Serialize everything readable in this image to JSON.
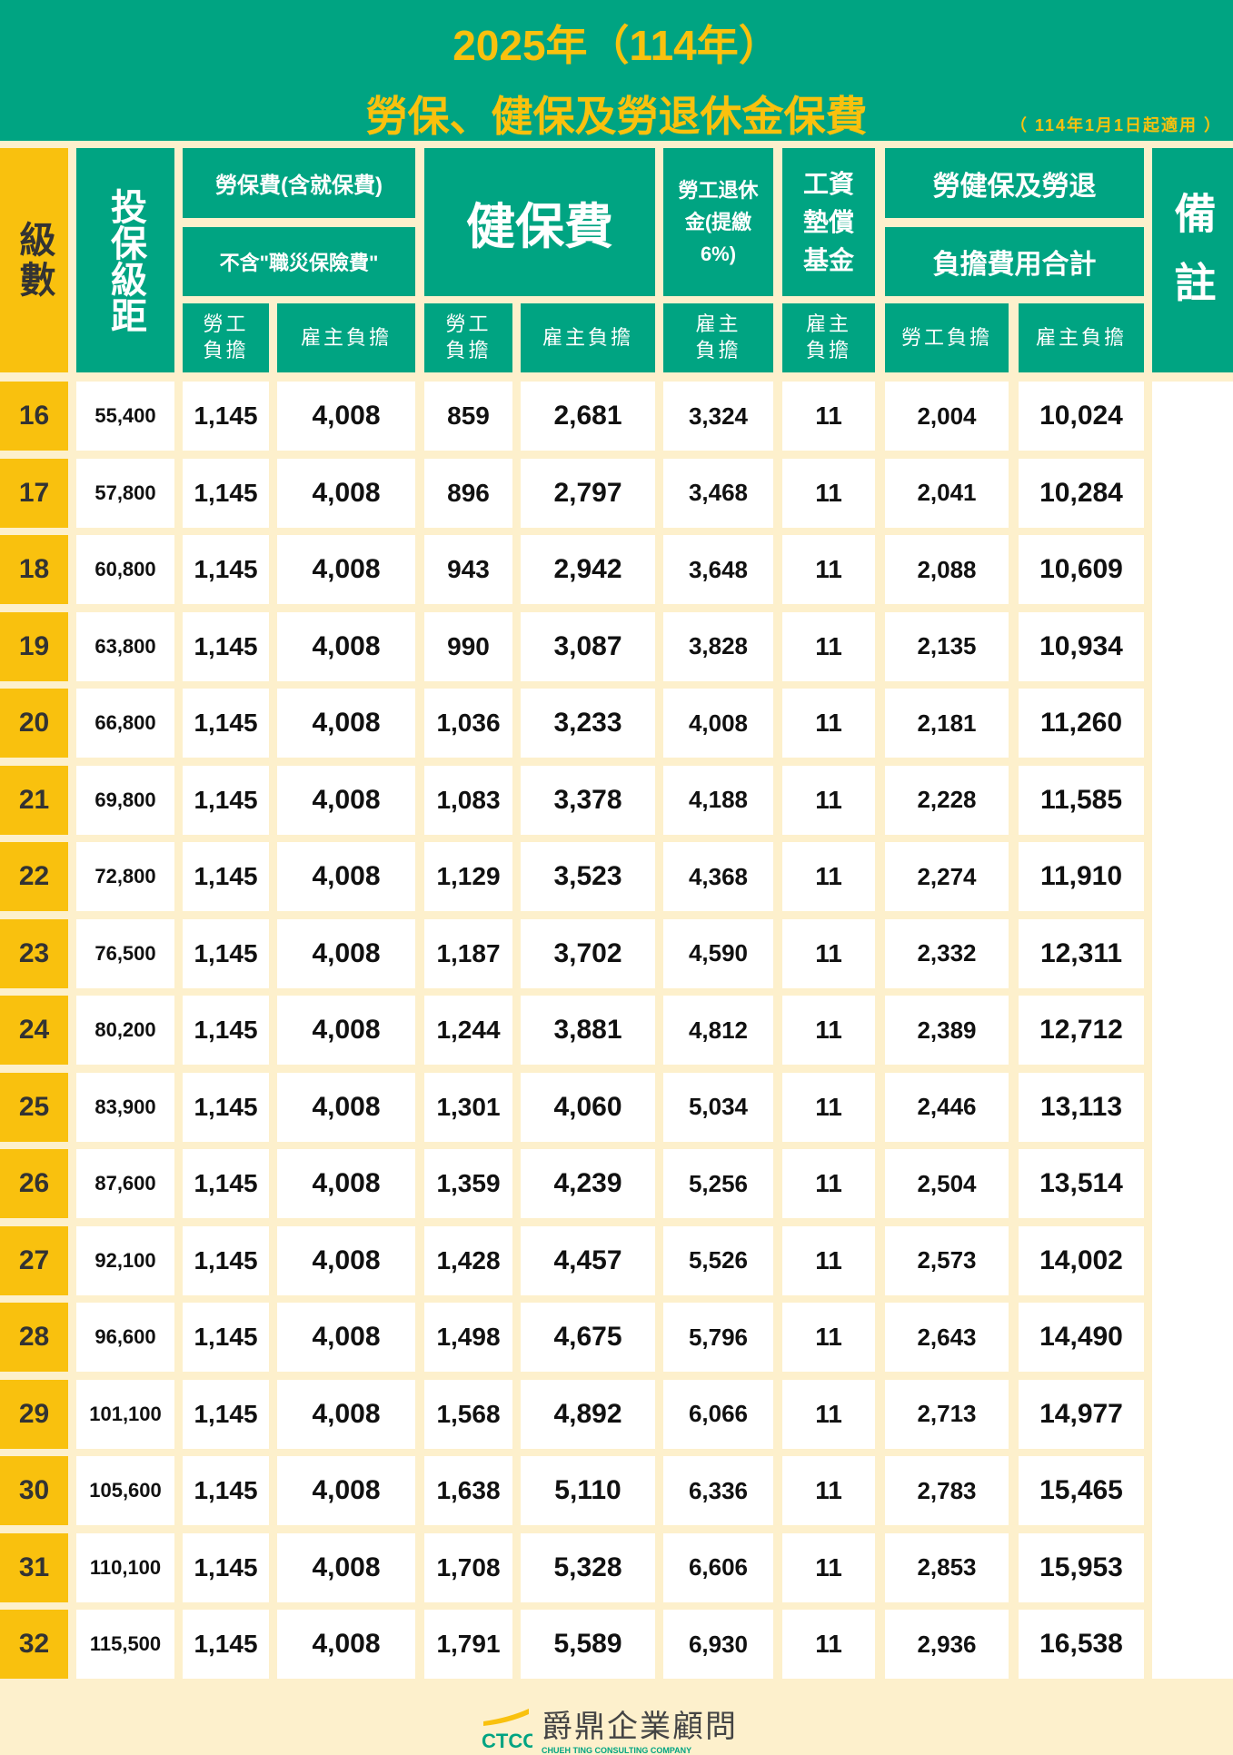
{
  "title": {
    "line1": "2025年（114年）",
    "line2": "勞保、健保及勞退休金保費",
    "note": "（ 114年1月1日起適用 ）"
  },
  "headers": {
    "grade": "級數",
    "bracket": "投保級距",
    "labor_ins": "勞保費(含就保費)",
    "labor_ins_note": "不含\"職災保險費\"",
    "health": "健保費",
    "pension": "勞工退休金(提繳6%)",
    "wage_fund": "工資墊償基金",
    "total1": "勞健保及勞退",
    "total2": "負擔費用合計",
    "remark": "備註",
    "worker": "勞工負擔",
    "employer": "雇主負擔"
  },
  "rows": [
    [
      "16",
      "55,400",
      "1,145",
      "4,008",
      "859",
      "2,681",
      "3,324",
      "11",
      "2,004",
      "10,024"
    ],
    [
      "17",
      "57,800",
      "1,145",
      "4,008",
      "896",
      "2,797",
      "3,468",
      "11",
      "2,041",
      "10,284"
    ],
    [
      "18",
      "60,800",
      "1,145",
      "4,008",
      "943",
      "2,942",
      "3,648",
      "11",
      "2,088",
      "10,609"
    ],
    [
      "19",
      "63,800",
      "1,145",
      "4,008",
      "990",
      "3,087",
      "3,828",
      "11",
      "2,135",
      "10,934"
    ],
    [
      "20",
      "66,800",
      "1,145",
      "4,008",
      "1,036",
      "3,233",
      "4,008",
      "11",
      "2,181",
      "11,260"
    ],
    [
      "21",
      "69,800",
      "1,145",
      "4,008",
      "1,083",
      "3,378",
      "4,188",
      "11",
      "2,228",
      "11,585"
    ],
    [
      "22",
      "72,800",
      "1,145",
      "4,008",
      "1,129",
      "3,523",
      "4,368",
      "11",
      "2,274",
      "11,910"
    ],
    [
      "23",
      "76,500",
      "1,145",
      "4,008",
      "1,187",
      "3,702",
      "4,590",
      "11",
      "2,332",
      "12,311"
    ],
    [
      "24",
      "80,200",
      "1,145",
      "4,008",
      "1,244",
      "3,881",
      "4,812",
      "11",
      "2,389",
      "12,712"
    ],
    [
      "25",
      "83,900",
      "1,145",
      "4,008",
      "1,301",
      "4,060",
      "5,034",
      "11",
      "2,446",
      "13,113"
    ],
    [
      "26",
      "87,600",
      "1,145",
      "4,008",
      "1,359",
      "4,239",
      "5,256",
      "11",
      "2,504",
      "13,514"
    ],
    [
      "27",
      "92,100",
      "1,145",
      "4,008",
      "1,428",
      "4,457",
      "5,526",
      "11",
      "2,573",
      "14,002"
    ],
    [
      "28",
      "96,600",
      "1,145",
      "4,008",
      "1,498",
      "4,675",
      "5,796",
      "11",
      "2,643",
      "14,490"
    ],
    [
      "29",
      "101,100",
      "1,145",
      "4,008",
      "1,568",
      "4,892",
      "6,066",
      "11",
      "2,713",
      "14,977"
    ],
    [
      "30",
      "105,600",
      "1,145",
      "4,008",
      "1,638",
      "5,110",
      "6,336",
      "11",
      "2,783",
      "15,465"
    ],
    [
      "31",
      "110,100",
      "1,145",
      "4,008",
      "1,708",
      "5,328",
      "6,606",
      "11",
      "2,853",
      "15,953"
    ],
    [
      "32",
      "115,500",
      "1,145",
      "4,008",
      "1,791",
      "5,589",
      "6,930",
      "11",
      "2,936",
      "16,538"
    ]
  ],
  "footer": {
    "logo_mark": "CTCC",
    "company": "爵鼎企業顧問",
    "company_en": "CHUEH TING CONSULTING COMPANY"
  },
  "colors": {
    "green": "#00a482",
    "yellow": "#f9c10e",
    "cream": "#fdf0cc"
  }
}
